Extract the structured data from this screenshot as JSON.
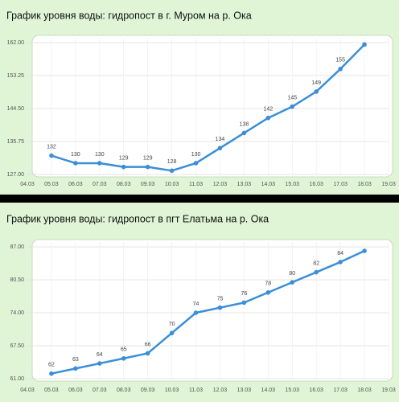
{
  "chart_data": [
    {
      "type": "line",
      "title": "График уровня воды: гидропост в г. Муром на р. Ока",
      "categories": [
        "04.03",
        "05.03",
        "06.03",
        "07.03",
        "08.03",
        "09.03",
        "10.03",
        "11.03",
        "12.03",
        "13.03",
        "14.03",
        "15.03",
        "16.03",
        "17.03",
        "18.03",
        "19.03"
      ],
      "values": [
        null,
        132,
        130,
        130,
        129,
        129,
        128,
        130,
        134,
        138,
        142,
        145,
        149,
        155,
        161.5,
        null
      ],
      "value_labels": [
        null,
        "132",
        "130",
        "130",
        "129",
        "129",
        "128",
        "130",
        "134",
        "138",
        "142",
        "145",
        "149",
        "155",
        null,
        null
      ],
      "color": "#3b8ed8",
      "ylim": [
        127,
        162
      ],
      "yticks": [
        {
          "value": 127,
          "label": "127.00"
        },
        {
          "value": 135.75,
          "label": "135.75"
        },
        {
          "value": 144.5,
          "label": "144.50"
        },
        {
          "value": 153.25,
          "label": "153.25"
        },
        {
          "value": 162,
          "label": "162.00"
        }
      ],
      "grid": true
    },
    {
      "type": "line",
      "title": "График уровня воды: гидропост в пгт Елатьма на р. Ока",
      "categories": [
        "04.03",
        "05.03",
        "06.03",
        "07.03",
        "08.03",
        "09.03",
        "10.03",
        "11.03",
        "12.03",
        "13.03",
        "14.03",
        "15.03",
        "16.03",
        "17.03",
        "18.03",
        "19.03"
      ],
      "values": [
        null,
        62,
        63,
        64,
        65,
        66,
        70,
        74,
        75,
        76,
        78,
        80,
        82,
        84,
        86.2,
        null
      ],
      "value_labels": [
        null,
        "62",
        "63",
        "64",
        "65",
        "66",
        "70",
        "74",
        "75",
        "76",
        "78",
        "80",
        "82",
        "84",
        null,
        null
      ],
      "color": "#3b8ed8",
      "ylim": [
        61,
        87
      ],
      "yticks": [
        {
          "value": 61,
          "label": "61.00"
        },
        {
          "value": 67.5,
          "label": "67.50"
        },
        {
          "value": 74,
          "label": "74.00"
        },
        {
          "value": 80.5,
          "label": "80.50"
        },
        {
          "value": 87,
          "label": "87.00"
        }
      ],
      "grid": true
    }
  ]
}
